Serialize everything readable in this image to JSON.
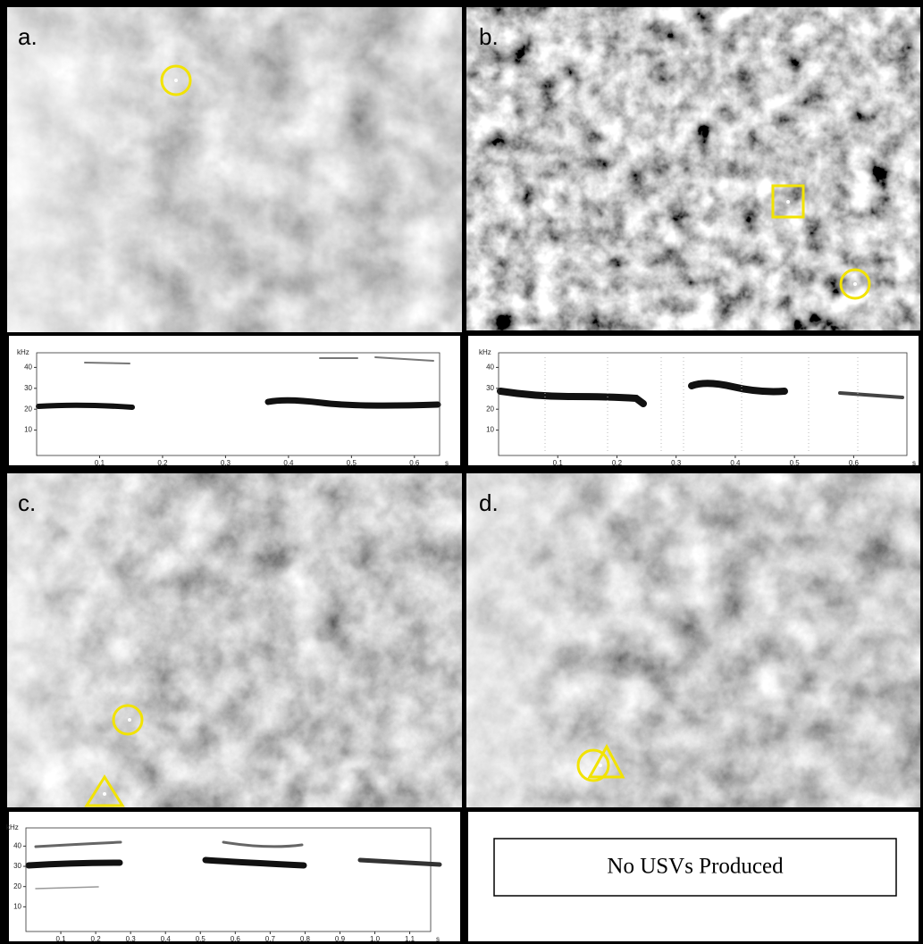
{
  "panels": [
    {
      "label": "a.",
      "spectrogram": {
        "y_unit": "kHz",
        "x_unit": "s",
        "xlim": [
          0,
          0.64
        ],
        "ylim": [
          0,
          47
        ],
        "xticks": [
          0.1,
          0.2,
          0.3,
          0.4,
          0.5,
          0.6
        ],
        "yticks": [
          10,
          20,
          30,
          40
        ]
      }
    },
    {
      "label": "b.",
      "spectrogram": {
        "y_unit": "kHz",
        "x_unit": "s",
        "xlim": [
          0,
          0.69
        ],
        "ylim": [
          0,
          47
        ],
        "xticks": [
          0.1,
          0.2,
          0.3,
          0.4,
          0.5,
          0.6
        ],
        "yticks": [
          10,
          20,
          30,
          40
        ]
      }
    },
    {
      "label": "c.",
      "spectrogram": {
        "y_unit": "kHz",
        "x_unit": "s",
        "xlim": [
          0,
          1.16
        ],
        "ylim": [
          0,
          49
        ],
        "xticks": [
          0.1,
          0.2,
          0.3,
          0.4,
          0.5,
          0.6,
          0.7,
          0.8,
          0.9,
          {
            "value": 1,
            "label": "1.0"
          },
          1.1
        ],
        "yticks": [
          10,
          20,
          30,
          40
        ]
      }
    },
    {
      "label": "d.",
      "message": "No USVs Produced"
    }
  ]
}
